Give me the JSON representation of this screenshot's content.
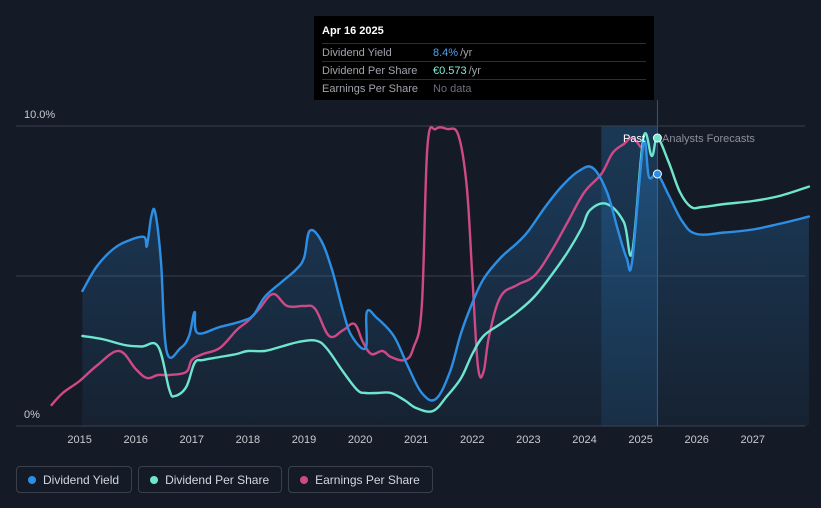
{
  "tooltip": {
    "date": "Apr 16 2025",
    "rows": [
      {
        "label": "Dividend Yield",
        "value": "8.4%",
        "unit": "/yr"
      },
      {
        "label": "Dividend Per Share",
        "value": "€0.573",
        "unit": "/yr"
      },
      {
        "label": "Earnings Per Share",
        "value": "No data",
        "unit": ""
      }
    ]
  },
  "past_label": "Past",
  "forecast_label": "Analysts Forecasts",
  "legend": [
    {
      "label": "Dividend Yield",
      "color": "#2d8fe4"
    },
    {
      "label": "Dividend Per Share",
      "color": "#6ee6cf"
    },
    {
      "label": "Earnings Per Share",
      "color": "#cd4a87"
    }
  ],
  "chart_data": {
    "type": "line",
    "ylim": [
      0,
      10
    ],
    "y_tick_labels": [
      "10.0%",
      "0%"
    ],
    "x_tick_labels": [
      "2015",
      "2016",
      "2017",
      "2018",
      "2019",
      "2020",
      "2021",
      "2022",
      "2023",
      "2024",
      "2025",
      "2026",
      "2027"
    ],
    "xlim": [
      2014.0,
      2028.0
    ],
    "forecast_start": 2025.3,
    "highlight_start": 2024.3,
    "series": [
      {
        "name": "Dividend Yield",
        "color": "#2d8fe4",
        "x": [
          2015.05,
          2015.3,
          2015.6,
          2015.9,
          2016.15,
          2016.2,
          2016.28,
          2016.35,
          2016.45,
          2016.55,
          2016.8,
          2016.95,
          2017.05,
          2017.1,
          2017.5,
          2017.9,
          2018.1,
          2018.3,
          2018.6,
          2018.85,
          2019.0,
          2019.1,
          2019.3,
          2019.5,
          2019.7,
          2019.85,
          2020.1,
          2020.12,
          2020.3,
          2020.6,
          2020.85,
          2021.1,
          2021.35,
          2021.6,
          2021.8,
          2022.0,
          2022.2,
          2022.5,
          2022.8,
          2023.0,
          2023.3,
          2023.6,
          2023.9,
          2024.15,
          2024.4,
          2024.6,
          2024.75,
          2024.85,
          2025.05,
          2025.15,
          2025.3,
          2025.5,
          2025.75,
          2026.0,
          2026.5,
          2027.0,
          2027.5,
          2028.0
        ],
        "y": [
          4.5,
          5.3,
          5.9,
          6.2,
          6.3,
          6.0,
          7.0,
          7.1,
          5.5,
          2.5,
          2.6,
          3.0,
          3.8,
          3.1,
          3.3,
          3.5,
          3.7,
          4.3,
          4.8,
          5.2,
          5.6,
          6.5,
          6.2,
          5.2,
          3.8,
          3.0,
          2.6,
          3.8,
          3.6,
          3.0,
          2.0,
          1.1,
          0.9,
          1.8,
          3.1,
          4.1,
          4.9,
          5.6,
          6.1,
          6.5,
          7.3,
          8.0,
          8.5,
          8.6,
          7.8,
          6.5,
          5.6,
          5.5,
          9.4,
          8.3,
          8.4,
          7.7,
          6.8,
          6.4,
          6.45,
          6.55,
          6.75,
          6.98
        ]
      },
      {
        "name": "Dividend Per Share",
        "color": "#6ee6cf",
        "x": [
          2015.05,
          2015.4,
          2015.8,
          2016.1,
          2016.4,
          2016.6,
          2016.7,
          2016.9,
          2017.05,
          2017.2,
          2017.5,
          2017.8,
          2018.0,
          2018.3,
          2018.6,
          2018.9,
          2019.2,
          2019.4,
          2019.7,
          2019.95,
          2020.1,
          2020.3,
          2020.55,
          2020.8,
          2021.0,
          2021.3,
          2021.55,
          2021.8,
          2022.0,
          2022.2,
          2022.5,
          2022.8,
          2023.1,
          2023.4,
          2023.7,
          2023.95,
          2024.1,
          2024.4,
          2024.7,
          2024.85,
          2025.05,
          2025.2,
          2025.3,
          2025.5,
          2025.7,
          2025.9,
          2026.1,
          2026.5,
          2027.0,
          2027.5,
          2028.0
        ],
        "y": [
          3.0,
          2.9,
          2.7,
          2.65,
          2.65,
          1.2,
          1.0,
          1.3,
          2.1,
          2.2,
          2.3,
          2.4,
          2.5,
          2.5,
          2.65,
          2.8,
          2.85,
          2.6,
          1.8,
          1.2,
          1.1,
          1.1,
          1.1,
          0.85,
          0.6,
          0.5,
          1.0,
          1.6,
          2.4,
          3.0,
          3.4,
          3.8,
          4.3,
          5.0,
          5.8,
          6.6,
          7.2,
          7.4,
          6.8,
          5.8,
          9.6,
          9.0,
          9.6,
          8.8,
          7.8,
          7.3,
          7.3,
          7.4,
          7.5,
          7.68,
          7.98
        ]
      },
      {
        "name": "Earnings Per Share",
        "color": "#cd4a87",
        "x": [
          2014.5,
          2014.7,
          2015.0,
          2015.3,
          2015.7,
          2016.0,
          2016.2,
          2016.4,
          2016.6,
          2016.9,
          2017.0,
          2017.2,
          2017.5,
          2017.8,
          2018.0,
          2018.2,
          2018.45,
          2018.7,
          2019.0,
          2019.2,
          2019.45,
          2019.7,
          2019.9,
          2020.05,
          2020.2,
          2020.4,
          2020.55,
          2020.8,
          2020.95,
          2021.1,
          2021.2,
          2021.35,
          2021.55,
          2021.75,
          2021.9,
          2022.0,
          2022.1,
          2022.2,
          2022.3,
          2022.5,
          2022.8,
          2023.1,
          2023.4,
          2023.7,
          2024.0,
          2024.3,
          2024.5,
          2024.7,
          2024.85,
          2025.0
        ],
        "y": [
          0.7,
          1.1,
          1.5,
          2.0,
          2.5,
          1.9,
          1.6,
          1.7,
          1.7,
          1.8,
          2.2,
          2.4,
          2.6,
          3.2,
          3.5,
          3.9,
          4.4,
          4.0,
          4.0,
          3.9,
          3.0,
          3.2,
          3.4,
          2.8,
          2.4,
          2.5,
          2.3,
          2.2,
          2.6,
          4.0,
          9.3,
          9.9,
          9.9,
          9.7,
          8.0,
          5.0,
          2.0,
          1.8,
          3.0,
          4.3,
          4.7,
          5.0,
          5.8,
          6.8,
          7.8,
          8.4,
          9.1,
          9.4,
          9.6,
          9.3
        ]
      }
    ],
    "markers": [
      {
        "series": "Dividend Per Share",
        "x": 2025.3,
        "y": 9.6
      },
      {
        "series": "Dividend Yield",
        "x": 2025.3,
        "y": 8.4
      }
    ]
  }
}
